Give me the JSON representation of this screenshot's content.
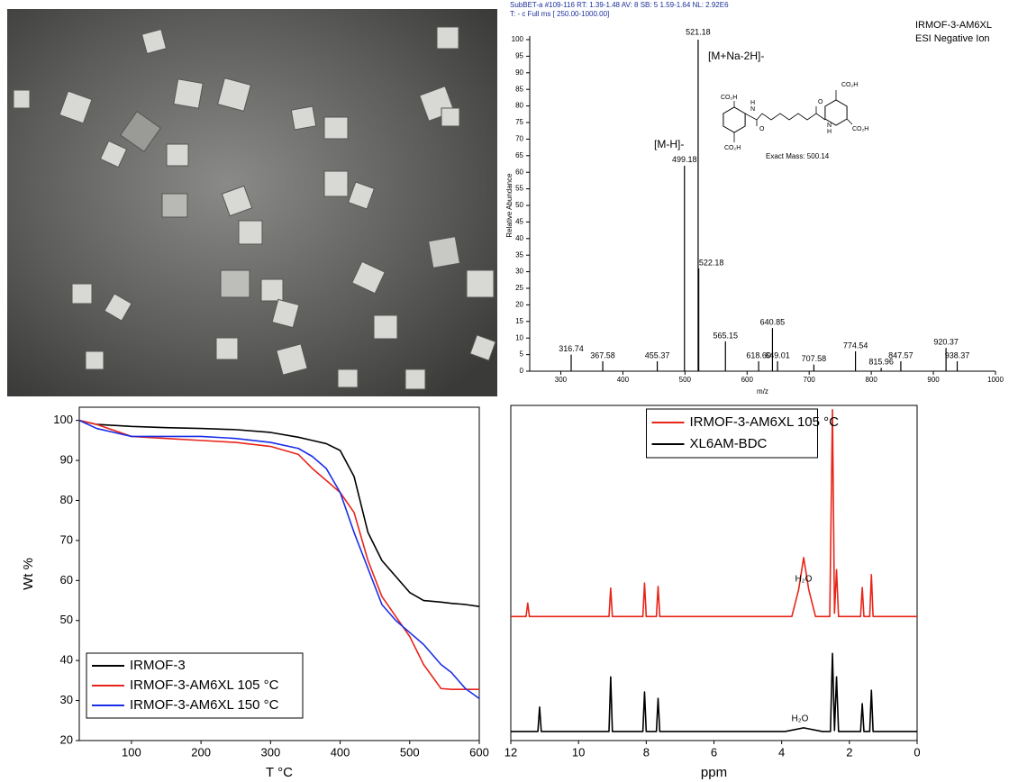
{
  "chart_data": [
    {
      "type": "bar",
      "header": [
        "SubBET-a #109-116  RT: 1.39-1.48  AV: 8  SB: 5  1.59-1.64  NL: 2.92E6",
        "T: - c Full ms [ 250.00-1000.00]"
      ],
      "annotations": [
        "IRMOF-3-AM6XL",
        "ESI Negative Ion",
        "[M+Na-2H]-",
        "[M-H]-",
        "Exact Mass: 500.14"
      ],
      "structure_labels": [
        "CO₂H",
        "CO₂H",
        "O",
        "N",
        "H",
        "CO₂H",
        "CO₂H",
        "O",
        "N",
        "H"
      ],
      "xlabel": "m/z",
      "ylabel": "Relative Abundance",
      "x": [
        316.74,
        367.58,
        455.37,
        499.18,
        521.18,
        522.18,
        565.15,
        618.6,
        640.85,
        649.01,
        707.58,
        774.54,
        815.96,
        847.57,
        920.37,
        938.37
      ],
      "labels": [
        "316.74",
        "367.58",
        "455.37",
        "499.18",
        "521.18",
        "522.18",
        "565.15",
        "618.60",
        "640.85",
        "649.01",
        "707.58",
        "774.54",
        "815.96",
        "847.57",
        "920.37",
        "938.37"
      ],
      "values": [
        5,
        3,
        3,
        62,
        100,
        31,
        9,
        3,
        13,
        3,
        2,
        6,
        1,
        3,
        7,
        3
      ],
      "color": "#000000",
      "xlim": [
        250,
        1000
      ],
      "xticks": [
        300,
        400,
        500,
        600,
        700,
        800,
        900,
        1000
      ],
      "ylim": [
        0,
        100
      ],
      "yticks": [
        0,
        5,
        10,
        15,
        20,
        25,
        30,
        35,
        40,
        45,
        50,
        55,
        60,
        65,
        70,
        75,
        80,
        85,
        90,
        95,
        100
      ]
    },
    {
      "type": "line",
      "xlabel": "T °C",
      "ylabel": "Wt %",
      "x": [
        25,
        50,
        100,
        150,
        200,
        250,
        300,
        340,
        360,
        380,
        400,
        420,
        440,
        460,
        480,
        500,
        520,
        545,
        560,
        580,
        600
      ],
      "series": [
        {
          "name": "IRMOF-3",
          "color": "#000000",
          "values": [
            100,
            99,
            98.5,
            98.2,
            98,
            97.7,
            97,
            95.8,
            95,
            94.2,
            92.5,
            86,
            72,
            65,
            61,
            57,
            55,
            54.6,
            54.3,
            54,
            53.5
          ]
        },
        {
          "name": "IRMOF-3-AM6XL 105 °C",
          "color": "#e8251a",
          "values": [
            100,
            99,
            96,
            95.5,
            95,
            94.5,
            93.5,
            91.5,
            88,
            85,
            82,
            77,
            65,
            56,
            51,
            46,
            39,
            33,
            32.8,
            32.8,
            32.8
          ]
        },
        {
          "name": "IRMOF-3-AM6XL 150 °C",
          "color": "#1a2ee8",
          "values": [
            100,
            98,
            96,
            96,
            96,
            95.5,
            94.5,
            93,
            91,
            88,
            82,
            72,
            63,
            54,
            50,
            47,
            44,
            39,
            37,
            33,
            30.5
          ]
        }
      ],
      "xlim": [
        25,
        600
      ],
      "xticks": [
        100,
        200,
        300,
        400,
        500,
        600
      ],
      "ylim": [
        20,
        103.3
      ],
      "yticks": [
        20,
        30,
        40,
        50,
        60,
        70,
        80,
        90,
        100
      ],
      "legend": "lower left"
    },
    {
      "type": "line",
      "xlabel": "ppm",
      "annotations": [
        "H₂O",
        "H₂O"
      ],
      "series": [
        {
          "name": "IRMOF-3-AM6XL 105 °C",
          "color": "#e8251a",
          "x": [
            12,
            11.55,
            11.5,
            11.45,
            9.1,
            9.05,
            9.0,
            8.1,
            8.05,
            8.0,
            7.7,
            7.65,
            7.6,
            3.7,
            3.5,
            3.35,
            3.2,
            3.0,
            2.58,
            2.5,
            2.44,
            2.38,
            2.32,
            1.67,
            1.62,
            1.57,
            1.4,
            1.35,
            1.3,
            0
          ],
          "values": [
            37,
            37,
            41,
            37,
            37,
            45.5,
            37,
            37,
            47,
            37,
            37,
            46,
            37,
            37,
            45,
            54.6,
            45,
            37,
            37,
            98.7,
            38,
            51,
            37,
            37,
            45.7,
            37,
            37,
            49.5,
            37,
            37
          ]
        },
        {
          "name": "XL6AM-BDC",
          "color": "#000000",
          "x": [
            12,
            11.2,
            11.15,
            11.1,
            9.1,
            9.05,
            9.0,
            8.1,
            8.05,
            8.0,
            7.7,
            7.65,
            7.6,
            3.9,
            3.35,
            2.8,
            2.56,
            2.5,
            2.44,
            2.38,
            2.32,
            1.67,
            1.62,
            1.57,
            1.4,
            1.35,
            1.3,
            0
          ],
          "values": [
            2.7,
            2.7,
            10,
            2.7,
            2.7,
            19,
            2.7,
            2.7,
            14.5,
            2.7,
            2.7,
            12.6,
            2.7,
            2.7,
            3.8,
            2.7,
            2.7,
            26,
            3,
            19,
            2.7,
            2.7,
            11,
            2.7,
            2.7,
            15,
            2.7,
            2.7
          ]
        }
      ],
      "xlim": [
        12,
        0
      ],
      "xticks": [
        12,
        10,
        8,
        6,
        4,
        2,
        0
      ],
      "ylim": [
        0,
        100
      ],
      "legend": "upper center"
    }
  ]
}
